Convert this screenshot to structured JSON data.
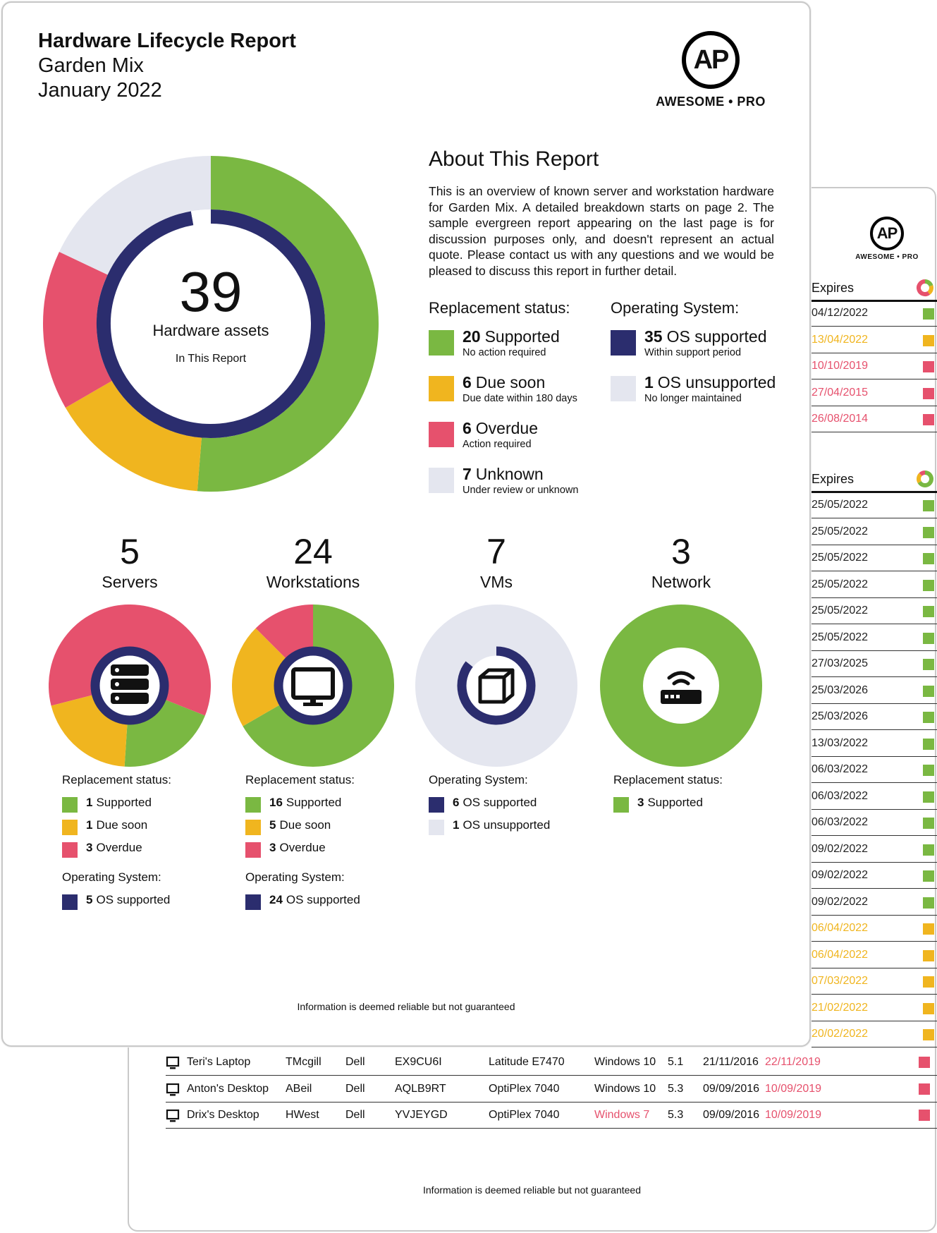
{
  "colors": {
    "supported": "#7ab842",
    "due": "#f0b51f",
    "overdue": "#e6516d",
    "unknown": "#e4e6ef",
    "os": "#2b2d6e"
  },
  "back": {
    "logo": {
      "initials": "AP",
      "brand": "AWESOME • PRO"
    },
    "expires_header_1": "Expires",
    "expires_col_1": [
      {
        "date": "04/12/2022",
        "status": "supported"
      },
      {
        "date": "13/04/2022",
        "status": "due"
      },
      {
        "date": "10/10/2019",
        "status": "overdue"
      },
      {
        "date": "27/04/2015",
        "status": "overdue"
      },
      {
        "date": "26/08/2014",
        "status": "overdue"
      }
    ],
    "expires_header_2": "Expires",
    "expires_col_2": [
      {
        "date": "25/05/2022",
        "status": "supported"
      },
      {
        "date": "25/05/2022",
        "status": "supported"
      },
      {
        "date": "25/05/2022",
        "status": "supported"
      },
      {
        "date": "25/05/2022",
        "status": "supported"
      },
      {
        "date": "25/05/2022",
        "status": "supported"
      },
      {
        "date": "25/05/2022",
        "status": "supported"
      },
      {
        "date": "27/03/2025",
        "status": "supported"
      },
      {
        "date": "25/03/2026",
        "status": "supported"
      },
      {
        "date": "25/03/2026",
        "status": "supported"
      },
      {
        "date": "13/03/2022",
        "status": "supported"
      },
      {
        "date": "06/03/2022",
        "status": "supported"
      },
      {
        "date": "06/03/2022",
        "status": "supported"
      },
      {
        "date": "06/03/2022",
        "status": "supported"
      },
      {
        "date": "09/02/2022",
        "status": "supported"
      },
      {
        "date": "09/02/2022",
        "status": "supported"
      },
      {
        "date": "09/02/2022",
        "status": "supported"
      },
      {
        "date": "06/04/2022",
        "status": "due"
      },
      {
        "date": "06/04/2022",
        "status": "due"
      },
      {
        "date": "07/03/2022",
        "status": "due"
      },
      {
        "date": "21/02/2022",
        "status": "due"
      },
      {
        "date": "20/02/2022",
        "status": "due"
      }
    ],
    "table_rows": [
      {
        "name": "Teri's Laptop",
        "user": "TMcgill",
        "make": "Dell",
        "serial": "EX9CU6I",
        "model": "Latitude E7470",
        "os": "Windows 10",
        "os_status": "supported",
        "ver": "5.1",
        "purchased": "21/11/2016",
        "expires": "22/11/2019",
        "status": "overdue"
      },
      {
        "name": "Anton's Desktop",
        "user": "ABeil",
        "make": "Dell",
        "serial": "AQLB9RT",
        "model": "OptiPlex 7040",
        "os": "Windows 10",
        "os_status": "supported",
        "ver": "5.3",
        "purchased": "09/09/2016",
        "expires": "10/09/2019",
        "status": "overdue"
      },
      {
        "name": "Drix's Desktop",
        "user": "HWest",
        "make": "Dell",
        "serial": "YVJEYGD",
        "model": "OptiPlex 7040",
        "os": "Windows 7",
        "os_status": "overdue",
        "ver": "5.3",
        "purchased": "09/09/2016",
        "expires": "10/09/2019",
        "status": "overdue"
      }
    ],
    "footer": "Information is deemed reliable but not guaranteed"
  },
  "front": {
    "title": "Hardware Lifecycle Report",
    "client": "Garden Mix",
    "period": "January 2022",
    "logo": {
      "initials": "AP",
      "brand": "AWESOME • PRO"
    },
    "total": {
      "count": "39",
      "label": "Hardware assets",
      "sub": "In This Report"
    },
    "about": {
      "heading": "About This Report",
      "text": "This is an overview of known server and workstation hardware for Garden Mix. A detailed breakdown starts on page 2. The sample evergreen report appearing on the last page is for discussion purposes only, and doesn't represent an actual quote. Please contact us with any questions and we would be pleased to discuss this report in further detail."
    },
    "replacement_heading": "Replacement status:",
    "os_heading": "Operating System:",
    "replacement_legend": [
      {
        "count": "20",
        "label": "Supported",
        "sub": "No action required",
        "color": "supported"
      },
      {
        "count": "6",
        "label": "Due soon",
        "sub": "Due date within 180 days",
        "color": "due"
      },
      {
        "count": "6",
        "label": "Overdue",
        "sub": "Action required",
        "color": "overdue"
      },
      {
        "count": "7",
        "label": "Unknown",
        "sub": "Under review or unknown",
        "color": "unknown"
      }
    ],
    "os_legend": [
      {
        "count": "35",
        "label": "OS supported",
        "sub": "Within support period",
        "color": "os"
      },
      {
        "count": "1",
        "label": "OS unsupported",
        "sub": "No longer maintained",
        "color": "unknown"
      }
    ],
    "chart_data": {
      "type": "pie",
      "outer_ring": {
        "name": "Replacement status",
        "categories": [
          "Supported",
          "Due soon",
          "Overdue",
          "Unknown"
        ],
        "values": [
          20,
          6,
          6,
          7
        ]
      },
      "inner_ring": {
        "name": "Operating System",
        "categories": [
          "OS supported",
          "OS unsupported"
        ],
        "values": [
          35,
          1
        ]
      }
    },
    "categories": [
      {
        "count": "5",
        "label": "Servers",
        "icon": "server-icon",
        "ring": [
          {
            "v": 1,
            "c": "supported"
          },
          {
            "v": 1,
            "c": "due"
          },
          {
            "v": 3,
            "c": "overdue"
          }
        ],
        "inner": [
          {
            "v": 5,
            "c": "os"
          }
        ],
        "sections": [
          {
            "heading": "Replacement status:",
            "items": [
              {
                "count": "1",
                "label": "Supported",
                "color": "supported"
              },
              {
                "count": "1",
                "label": "Due soon",
                "color": "due"
              },
              {
                "count": "3",
                "label": "Overdue",
                "color": "overdue"
              }
            ]
          },
          {
            "heading": "Operating System:",
            "items": [
              {
                "count": "5",
                "label": "OS supported",
                "color": "os"
              }
            ]
          }
        ]
      },
      {
        "count": "24",
        "label": "Workstations",
        "icon": "monitor-icon",
        "ring": [
          {
            "v": 16,
            "c": "supported"
          },
          {
            "v": 5,
            "c": "due"
          },
          {
            "v": 3,
            "c": "overdue"
          }
        ],
        "inner": [
          {
            "v": 24,
            "c": "os"
          }
        ],
        "sections": [
          {
            "heading": "Replacement status:",
            "items": [
              {
                "count": "16",
                "label": "Supported",
                "color": "supported"
              },
              {
                "count": "5",
                "label": "Due soon",
                "color": "due"
              },
              {
                "count": "3",
                "label": "Overdue",
                "color": "overdue"
              }
            ]
          },
          {
            "heading": "Operating System:",
            "items": [
              {
                "count": "24",
                "label": "OS supported",
                "color": "os"
              }
            ]
          }
        ]
      },
      {
        "count": "7",
        "label": "VMs",
        "icon": "cube-icon",
        "ring": [
          {
            "v": 7,
            "c": "unknown"
          }
        ],
        "inner": [
          {
            "v": 6,
            "c": "os"
          },
          {
            "v": 1,
            "c": "unknown"
          }
        ],
        "sections": [
          {
            "heading": "Operating System:",
            "items": [
              {
                "count": "6",
                "label": "OS supported",
                "color": "os"
              },
              {
                "count": "1",
                "label": "OS unsupported",
                "color": "unknown"
              }
            ]
          }
        ]
      },
      {
        "count": "3",
        "label": "Network",
        "icon": "router-icon",
        "ring": [
          {
            "v": 3,
            "c": "supported"
          }
        ],
        "inner": [
          {
            "v": 3,
            "c": "supported"
          }
        ],
        "sections": [
          {
            "heading": "Replacement status:",
            "items": [
              {
                "count": "3",
                "label": "Supported",
                "color": "supported"
              }
            ]
          }
        ]
      }
    ],
    "footer": "Information is deemed reliable but not guaranteed"
  }
}
